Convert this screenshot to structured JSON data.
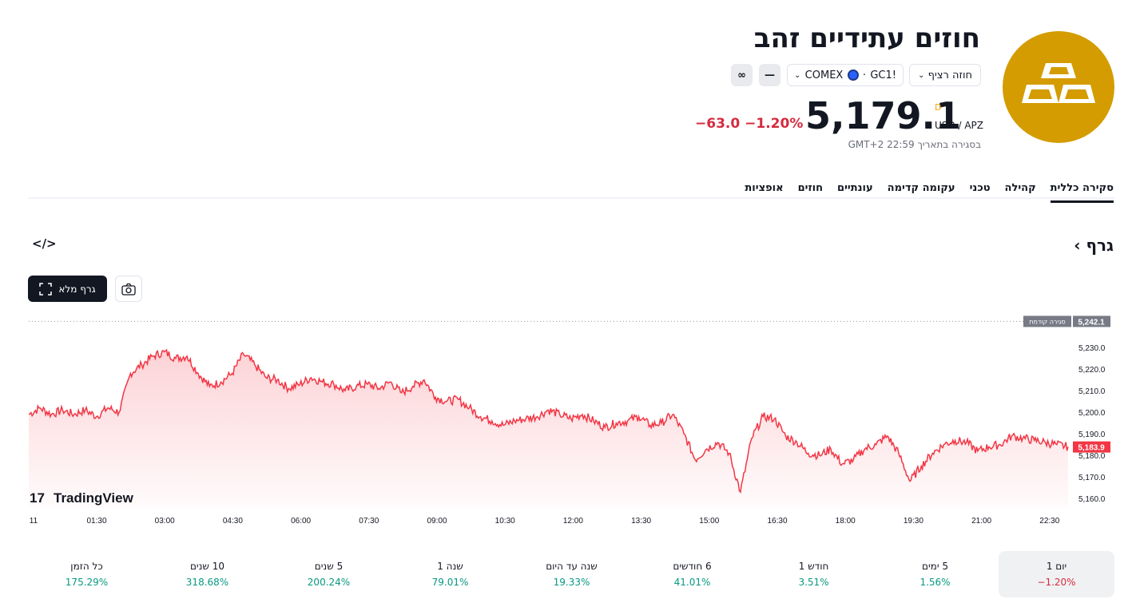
{
  "header": {
    "title": "חוזים עתידיים זהב",
    "contract_chip": "חוזה רציף",
    "symbol": "GC1!",
    "exchange": "COMEX",
    "price": "5,179.1",
    "price_flag": "D",
    "unit": "USD / APZ",
    "change_abs": "−63.0",
    "change_pct": "−1.20%",
    "closed_note": "בסגירה בתאריך 22:59 GMT+2"
  },
  "tabs": [
    "סקירה כללית",
    "קהילה",
    "טכני",
    "עקומה קדימה",
    "עונתיים",
    "חוזים",
    "אופציות"
  ],
  "graph": {
    "title": "גרף",
    "full_chart_label": "גרף מלא",
    "brand": "TradingView"
  },
  "chart_data": {
    "type": "area",
    "x_ticks": [
      "11",
      "01:30",
      "03:00",
      "04:30",
      "06:00",
      "07:30",
      "09:00",
      "10:30",
      "12:00",
      "13:30",
      "15:00",
      "16:30",
      "18:00",
      "19:30",
      "21:00",
      "22:30"
    ],
    "y_ticks": [
      5160.0,
      5170.0,
      5180.0,
      5190.0,
      5200.0,
      5210.0,
      5220.0,
      5230.0
    ],
    "y_tick_labels": [
      "5,160.0",
      "5,170.0",
      "5,180.0",
      "5,190.0",
      "5,200.0",
      "5,210.0",
      "5,220.0",
      "5,230.0"
    ],
    "ylim": [
      5156,
      5243
    ],
    "prev_close": {
      "label": "סגירה קודמת",
      "value": 5242.1,
      "display": "5,242.1"
    },
    "last": {
      "value": 5183.9,
      "display": "5,183.9"
    },
    "series": [
      {
        "x": [
          "00:00",
          "00:15",
          "00:30",
          "00:45",
          "01:00",
          "01:15",
          "01:30",
          "01:45",
          "02:00",
          "02:15",
          "02:30",
          "02:45",
          "03:00",
          "03:15",
          "03:30",
          "03:45",
          "04:00",
          "04:15",
          "04:30",
          "04:45",
          "05:00",
          "05:15",
          "05:30",
          "05:45",
          "06:00",
          "06:15",
          "06:30",
          "06:45",
          "07:00",
          "07:15",
          "07:30",
          "07:45",
          "08:00",
          "08:15",
          "08:30",
          "08:45",
          "09:00",
          "09:15",
          "09:30",
          "09:45",
          "10:00",
          "10:15",
          "10:30",
          "10:45",
          "11:00",
          "11:15",
          "11:30",
          "11:45",
          "12:00",
          "12:15",
          "12:30",
          "12:45",
          "13:00",
          "13:15",
          "13:30",
          "13:45",
          "14:00",
          "14:15",
          "14:30",
          "14:45",
          "15:00",
          "15:15",
          "15:30",
          "15:45",
          "16:00",
          "16:15",
          "16:30",
          "16:45",
          "17:00",
          "17:15",
          "17:30",
          "17:45",
          "18:00",
          "18:15",
          "18:30",
          "18:45",
          "19:00",
          "19:15",
          "19:30",
          "19:45",
          "20:00",
          "20:15",
          "20:30",
          "20:45",
          "21:00",
          "21:15",
          "21:30",
          "21:45",
          "22:00",
          "22:15",
          "22:30",
          "22:45",
          "22:59"
        ],
        "values": [
          5199,
          5202,
          5199,
          5201,
          5199,
          5201,
          5198,
          5202,
          5200,
          5218,
          5222,
          5226,
          5228,
          5225,
          5226,
          5218,
          5212,
          5214,
          5218,
          5227,
          5222,
          5216,
          5215,
          5211,
          5213,
          5216,
          5214,
          5213,
          5210,
          5212,
          5213,
          5211,
          5214,
          5209,
          5212,
          5215,
          5207,
          5205,
          5206,
          5202,
          5198,
          5196,
          5194,
          5196,
          5197,
          5198,
          5201,
          5199,
          5197,
          5199,
          5196,
          5193,
          5195,
          5196,
          5198,
          5194,
          5195,
          5199,
          5190,
          5178,
          5183,
          5186,
          5181,
          5163,
          5188,
          5198,
          5197,
          5189,
          5186,
          5181,
          5180,
          5183,
          5176,
          5178,
          5183,
          5185,
          5189,
          5181,
          5168,
          5175,
          5181,
          5185,
          5187,
          5186,
          5182,
          5184,
          5185,
          5189,
          5188,
          5187,
          5186,
          5185,
          5184
        ]
      }
    ]
  },
  "performance": [
    {
      "label": "יום 1",
      "value": "−1.20%",
      "tone": "neg",
      "active": true
    },
    {
      "label": "5 ימים",
      "value": "1.56%",
      "tone": "pos",
      "active": false
    },
    {
      "label": "חודש 1",
      "value": "3.51%",
      "tone": "pos",
      "active": false
    },
    {
      "label": "6 חודשים",
      "value": "41.01%",
      "tone": "pos",
      "active": false
    },
    {
      "label": "שנה עד היום",
      "value": "19.33%",
      "tone": "pos",
      "active": false
    },
    {
      "label": "שנה 1",
      "value": "79.01%",
      "tone": "pos",
      "active": false
    },
    {
      "label": "5 שנים",
      "value": "200.24%",
      "tone": "pos",
      "active": false
    },
    {
      "label": "10 שנים",
      "value": "318.68%",
      "tone": "pos",
      "active": false
    },
    {
      "label": "כל הזמן",
      "value": "175.29%",
      "tone": "pos",
      "active": false
    }
  ],
  "colors": {
    "accent_gold": "#d49c00",
    "negative": "#d62b3f",
    "positive": "#089981",
    "line": "#f23645"
  }
}
